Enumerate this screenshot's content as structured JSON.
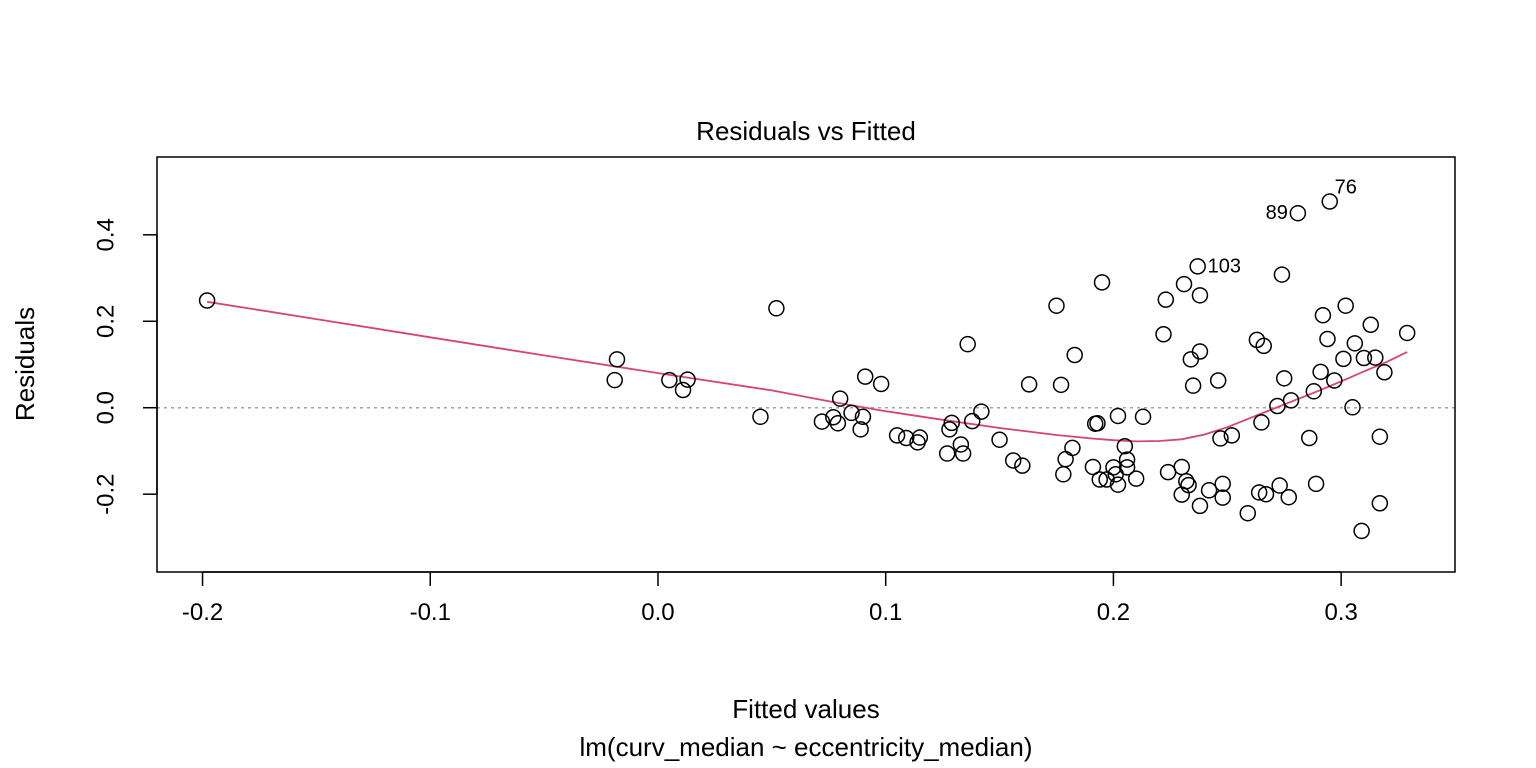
{
  "chart_data": {
    "type": "scatter",
    "title": "Residuals vs Fitted",
    "xlabel": "Fitted values",
    "subtitle": "lm(curv_median ~ eccentricity_median)",
    "ylabel": "Residuals",
    "xlim": [
      -0.22,
      0.35
    ],
    "ylim": [
      -0.38,
      0.58
    ],
    "x_ticks": [
      -0.2,
      -0.1,
      0.0,
      0.1,
      0.2,
      0.3
    ],
    "x_tick_labels": [
      "-0.2",
      "-0.1",
      "0.0",
      "0.1",
      "0.2",
      "0.3"
    ],
    "y_ticks": [
      -0.2,
      0.0,
      0.2,
      0.4
    ],
    "y_tick_labels": [
      "-0.2",
      "0.0",
      "0.2",
      "0.4"
    ],
    "reference_line_y": 0,
    "colors": {
      "points": "#000000",
      "smooth": "#d6456b",
      "reference": "#a0a0a0"
    },
    "labeled_points": [
      {
        "label": "76",
        "x": 0.295,
        "y": 0.477
      },
      {
        "label": "89",
        "x": 0.281,
        "y": 0.45
      },
      {
        "label": "103",
        "x": 0.237,
        "y": 0.327
      }
    ],
    "points": [
      [
        -0.198,
        0.248
      ],
      [
        -0.018,
        0.112
      ],
      [
        -0.019,
        0.064
      ],
      [
        0.005,
        0.064
      ],
      [
        0.011,
        0.041
      ],
      [
        0.013,
        0.065
      ],
      [
        0.045,
        -0.021
      ],
      [
        0.052,
        0.23
      ],
      [
        0.072,
        -0.032
      ],
      [
        0.077,
        -0.022
      ],
      [
        0.079,
        -0.036
      ],
      [
        0.08,
        0.021
      ],
      [
        0.085,
        -0.012
      ],
      [
        0.089,
        -0.05
      ],
      [
        0.09,
        -0.021
      ],
      [
        0.091,
        0.072
      ],
      [
        0.098,
        0.055
      ],
      [
        0.105,
        -0.064
      ],
      [
        0.109,
        -0.07
      ],
      [
        0.114,
        -0.08
      ],
      [
        0.115,
        -0.069
      ],
      [
        0.127,
        -0.106
      ],
      [
        0.128,
        -0.05
      ],
      [
        0.129,
        -0.035
      ],
      [
        0.133,
        -0.085
      ],
      [
        0.134,
        -0.106
      ],
      [
        0.136,
        0.147
      ],
      [
        0.138,
        -0.031
      ],
      [
        0.142,
        -0.009
      ],
      [
        0.15,
        -0.074
      ],
      [
        0.156,
        -0.122
      ],
      [
        0.16,
        -0.134
      ],
      [
        0.163,
        0.054
      ],
      [
        0.175,
        0.236
      ],
      [
        0.177,
        0.053
      ],
      [
        0.178,
        -0.154
      ],
      [
        0.179,
        -0.119
      ],
      [
        0.182,
        -0.093
      ],
      [
        0.183,
        0.122
      ],
      [
        0.191,
        -0.137
      ],
      [
        0.192,
        -0.037
      ],
      [
        0.193,
        -0.036
      ],
      [
        0.194,
        -0.166
      ],
      [
        0.195,
        0.29
      ],
      [
        0.197,
        -0.166
      ],
      [
        0.2,
        -0.138
      ],
      [
        0.201,
        -0.154
      ],
      [
        0.202,
        -0.019
      ],
      [
        0.202,
        -0.178
      ],
      [
        0.205,
        -0.089
      ],
      [
        0.206,
        -0.12
      ],
      [
        0.206,
        -0.138
      ],
      [
        0.21,
        -0.164
      ],
      [
        0.213,
        -0.021
      ],
      [
        0.222,
        0.17
      ],
      [
        0.223,
        0.25
      ],
      [
        0.224,
        -0.149
      ],
      [
        0.23,
        -0.201
      ],
      [
        0.23,
        -0.137
      ],
      [
        0.231,
        0.286
      ],
      [
        0.232,
        -0.17
      ],
      [
        0.233,
        -0.179
      ],
      [
        0.234,
        0.112
      ],
      [
        0.235,
        0.051
      ],
      [
        0.237,
        0.327
      ],
      [
        0.238,
        0.13
      ],
      [
        0.238,
        0.26
      ],
      [
        0.238,
        -0.227
      ],
      [
        0.242,
        -0.191
      ],
      [
        0.246,
        0.063
      ],
      [
        0.247,
        -0.071
      ],
      [
        0.248,
        -0.176
      ],
      [
        0.248,
        -0.208
      ],
      [
        0.252,
        -0.064
      ],
      [
        0.259,
        -0.244
      ],
      [
        0.263,
        0.157
      ],
      [
        0.264,
        -0.196
      ],
      [
        0.265,
        -0.034
      ],
      [
        0.266,
        0.143
      ],
      [
        0.267,
        -0.2
      ],
      [
        0.272,
        0.004
      ],
      [
        0.273,
        -0.18
      ],
      [
        0.274,
        0.308
      ],
      [
        0.275,
        0.068
      ],
      [
        0.277,
        -0.207
      ],
      [
        0.278,
        0.017
      ],
      [
        0.281,
        0.45
      ],
      [
        0.286,
        -0.07
      ],
      [
        0.288,
        0.038
      ],
      [
        0.289,
        -0.176
      ],
      [
        0.291,
        0.083
      ],
      [
        0.292,
        0.214
      ],
      [
        0.294,
        0.159
      ],
      [
        0.295,
        0.477
      ],
      [
        0.297,
        0.063
      ],
      [
        0.301,
        0.113
      ],
      [
        0.302,
        0.236
      ],
      [
        0.305,
        0.001
      ],
      [
        0.306,
        0.149
      ],
      [
        0.309,
        -0.285
      ],
      [
        0.31,
        0.115
      ],
      [
        0.313,
        0.192
      ],
      [
        0.315,
        0.116
      ],
      [
        0.317,
        -0.221
      ],
      [
        0.317,
        -0.067
      ],
      [
        0.319,
        0.082
      ],
      [
        0.329,
        0.173
      ]
    ],
    "smooth_line": [
      [
        -0.198,
        0.245
      ],
      [
        -0.15,
        0.205
      ],
      [
        -0.1,
        0.163
      ],
      [
        -0.05,
        0.121
      ],
      [
        0.0,
        0.08
      ],
      [
        0.05,
        0.04
      ],
      [
        0.075,
        0.015
      ],
      [
        0.1,
        -0.008
      ],
      [
        0.125,
        -0.028
      ],
      [
        0.15,
        -0.047
      ],
      [
        0.175,
        -0.063
      ],
      [
        0.19,
        -0.071
      ],
      [
        0.2,
        -0.075
      ],
      [
        0.21,
        -0.078
      ],
      [
        0.22,
        -0.077
      ],
      [
        0.23,
        -0.073
      ],
      [
        0.24,
        -0.062
      ],
      [
        0.25,
        -0.045
      ],
      [
        0.26,
        -0.024
      ],
      [
        0.27,
        -0.003
      ],
      [
        0.28,
        0.018
      ],
      [
        0.29,
        0.039
      ],
      [
        0.3,
        0.061
      ],
      [
        0.31,
        0.084
      ],
      [
        0.32,
        0.106
      ],
      [
        0.329,
        0.129
      ]
    ]
  }
}
